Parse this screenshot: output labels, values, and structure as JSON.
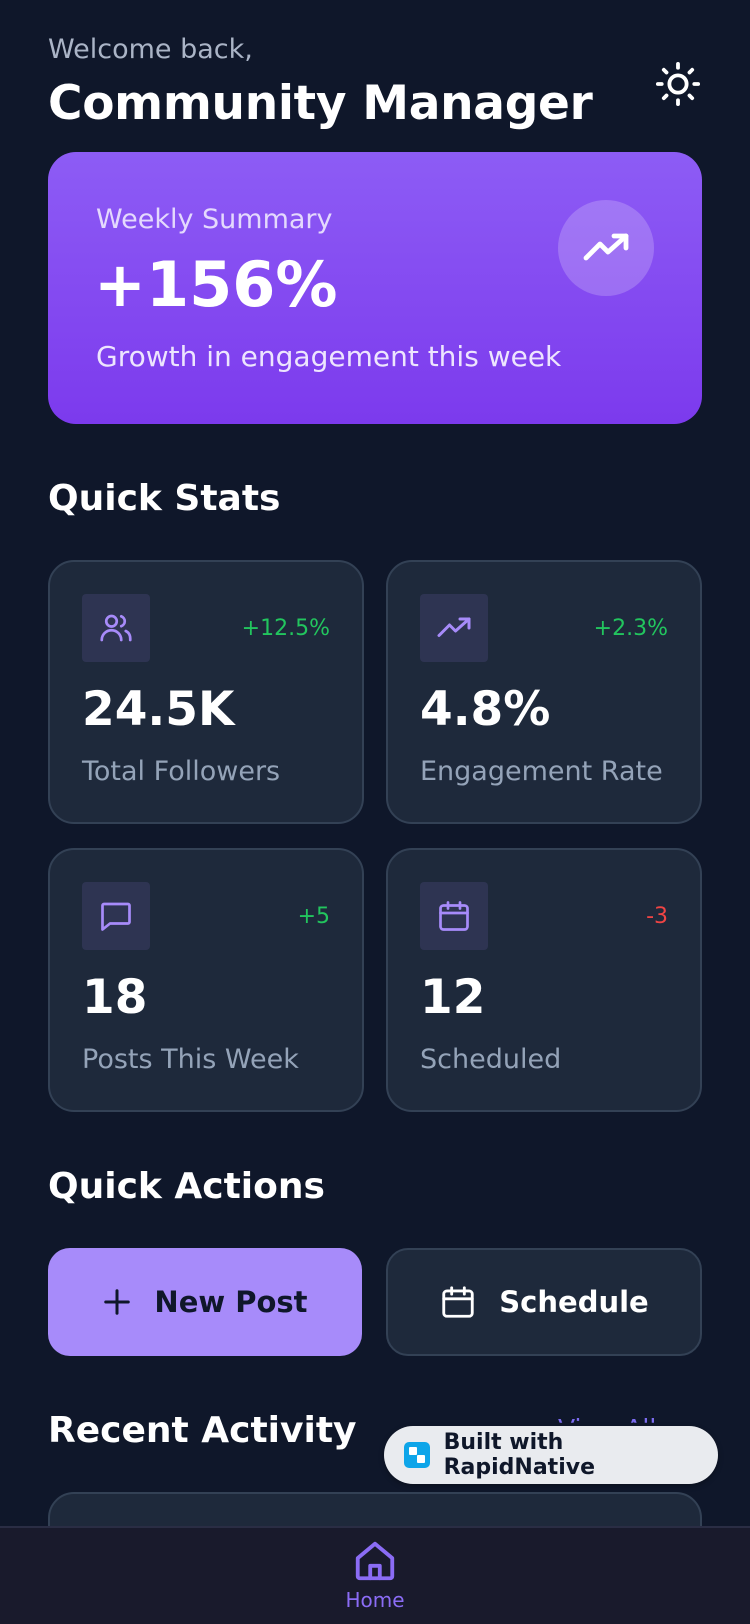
{
  "header": {
    "welcome": "Welcome back,",
    "user_name": "Community Manager",
    "theme_icon": "sun-icon"
  },
  "summary": {
    "label": "Weekly Summary",
    "value": "+156%",
    "description": "Growth in engagement this week",
    "icon": "trending-up-icon"
  },
  "quick_stats": {
    "title": "Quick Stats",
    "cards": [
      {
        "icon": "users-icon",
        "change": "+12.5%",
        "change_color": "#22c55e",
        "value": "24.5K",
        "label": "Total Followers"
      },
      {
        "icon": "trending-up-icon",
        "change": "+2.3%",
        "change_color": "#22c55e",
        "value": "4.8%",
        "label": "Engagement Rate"
      },
      {
        "icon": "message-icon",
        "change": "+5",
        "change_color": "#22c55e",
        "value": "18",
        "label": "Posts This Week"
      },
      {
        "icon": "calendar-icon",
        "change": "-3",
        "change_color": "#ef4444",
        "value": "12",
        "label": "Scheduled"
      }
    ]
  },
  "quick_actions": {
    "title": "Quick Actions",
    "new_post": "New Post",
    "schedule": "Schedule"
  },
  "recent_activity": {
    "title": "Recent Activity",
    "view_all": "View All"
  },
  "badge": {
    "text": "Built with RapidNative"
  },
  "nav": {
    "home": "Home"
  },
  "colors": {
    "background": "#0f172a",
    "card": "#1e293b",
    "accent": "#a78bfa",
    "summary_gradient": [
      "#8d5cf5",
      "#7c3aed"
    ],
    "positive": "#22c55e",
    "negative": "#ef4444"
  }
}
